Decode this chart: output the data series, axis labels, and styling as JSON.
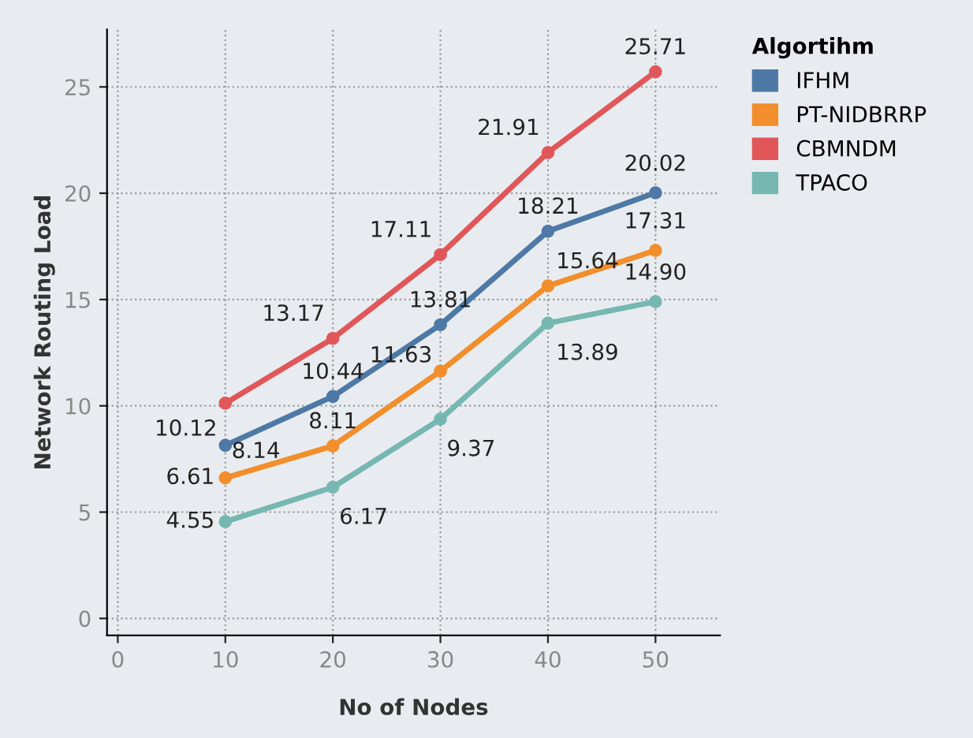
{
  "chart_data": {
    "type": "line",
    "xlabel": "No of Nodes",
    "ylabel": "Network Routing Load",
    "legend_title": "Algortihm",
    "x": [
      10,
      20,
      30,
      40,
      50
    ],
    "series": [
      {
        "name": "IFHM",
        "color": "#4e79a7",
        "values": [
          8.14,
          10.44,
          13.81,
          18.21,
          20.02
        ],
        "value_labels": [
          "8.14",
          "10.44",
          "13.81",
          "18.21",
          "20.02"
        ]
      },
      {
        "name": "PT-NIDBRRP",
        "color": "#f28e2b",
        "values": [
          6.61,
          8.11,
          11.63,
          15.64,
          17.31
        ],
        "value_labels": [
          "6.61",
          "8.11",
          "11.63",
          "15.64",
          "17.31"
        ]
      },
      {
        "name": "CBMNDM",
        "color": "#e15759",
        "values": [
          10.12,
          13.17,
          17.11,
          21.91,
          25.71
        ],
        "value_labels": [
          "10.12",
          "13.17",
          "17.11",
          "21.91",
          "25.71"
        ]
      },
      {
        "name": "TPACO",
        "color": "#76b7b2",
        "values": [
          4.55,
          6.17,
          9.37,
          13.89,
          14.9
        ],
        "value_labels": [
          "4.55",
          "6.17",
          "9.37",
          "13.89",
          "14.90"
        ]
      }
    ],
    "xlim": [
      -1,
      56
    ],
    "ylim": [
      -0.8,
      27.7
    ],
    "xticks": [
      0,
      10,
      20,
      30,
      40,
      50
    ],
    "yticks": [
      0,
      5,
      10,
      15,
      20,
      25
    ],
    "grid": true,
    "legend": "top right",
    "marker": "circle",
    "line_style": "solid"
  }
}
